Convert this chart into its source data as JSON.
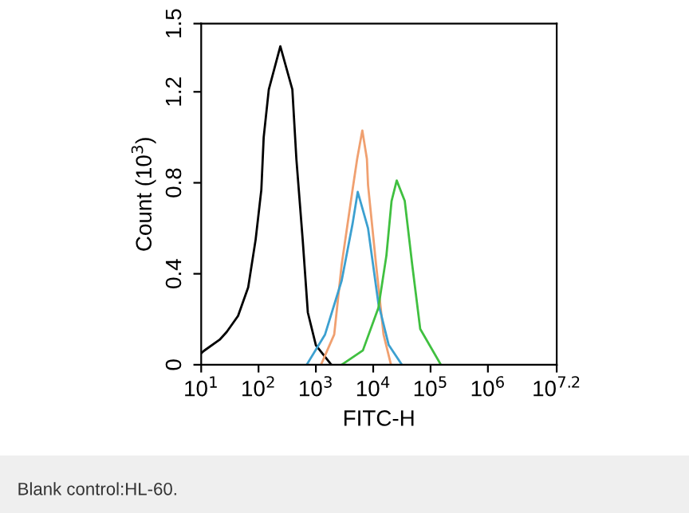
{
  "chart_data": {
    "type": "line",
    "xlabel": "FITC-H",
    "ylabel": "Count (10$^{3}$)",
    "log": "x",
    "grid": false,
    "legend": false,
    "xlim": [
      10,
      15848932
    ],
    "ylim": [
      0,
      1.5
    ],
    "xticks": [
      {
        "value": 10,
        "label": "10$^{1}$"
      },
      {
        "value": 100,
        "label": "10$^{2}$"
      },
      {
        "value": 1000,
        "label": "10$^{3}$"
      },
      {
        "value": 10000,
        "label": "10$^{4}$"
      },
      {
        "value": 100000,
        "label": "10$^{5}$"
      },
      {
        "value": 1000000,
        "label": "10$^{6}$"
      },
      {
        "value": 15848932,
        "label": "10$^{7.2}$"
      }
    ],
    "yticks": [
      0,
      0.4,
      0.8,
      1.2,
      1.5
    ],
    "series": [
      {
        "color": "#000000",
        "x": [
          10,
          11,
          21,
          28,
          44,
          66,
          89,
          112,
          123,
          151,
          240,
          389,
          457,
          589,
          724,
          1000,
          1862
        ],
        "values": [
          0.05,
          0.06,
          0.11,
          0.145,
          0.215,
          0.34,
          0.55,
          0.77,
          1.0,
          1.21,
          1.4,
          1.21,
          0.905,
          0.55,
          0.23,
          0.086,
          0
        ]
      },
      {
        "color": "#f0a070",
        "x": [
          1230,
          2089,
          2818,
          4365,
          5248,
          6457,
          7762,
          8128,
          11220,
          15136,
          20417
        ],
        "values": [
          0,
          0.133,
          0.44,
          0.77,
          0.905,
          1.03,
          0.905,
          0.79,
          0.44,
          0.133,
          0
        ]
      },
      {
        "color": "#3ca0d0",
        "x": [
          692,
          1445,
          2818,
          4365,
          5370,
          8128,
          12303,
          18621,
          31623
        ],
        "values": [
          0,
          0.133,
          0.37,
          0.62,
          0.76,
          0.6,
          0.27,
          0.087,
          0
        ]
      },
      {
        "color": "#40c040",
        "x": [
          2818,
          6607,
          12303,
          16982,
          20893,
          25704,
          35481,
          47863,
          66069,
          151356
        ],
        "values": [
          0,
          0.063,
          0.25,
          0.48,
          0.72,
          0.81,
          0.72,
          0.44,
          0.157,
          0
        ]
      }
    ],
    "annotations": [
      "Blank control:HL-60."
    ]
  }
}
